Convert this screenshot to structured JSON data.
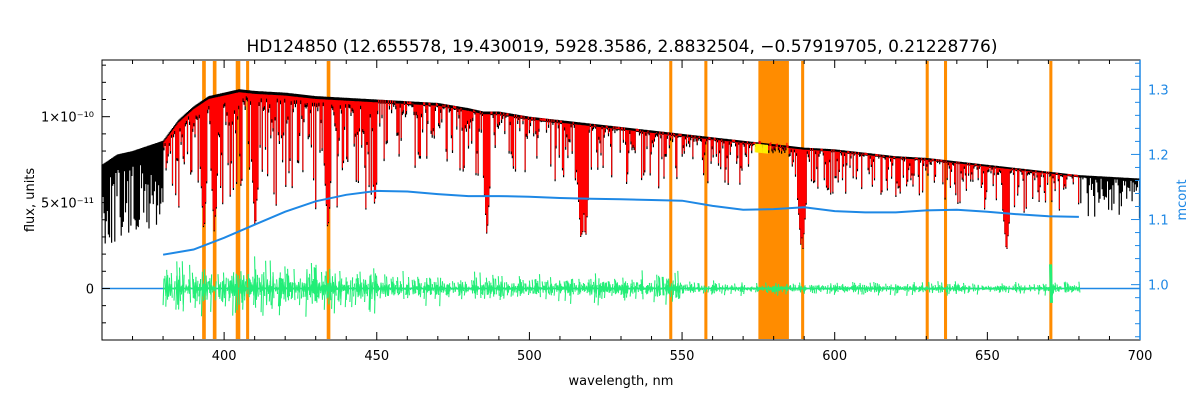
{
  "chart_data": {
    "type": "line",
    "title": "HD124850    (12.655578, 19.430019, 5928.3586, 2.8832504, −0.57919705, 0.21228776)",
    "xlabel": "wavelength, nm",
    "ylabel": "flux, units",
    "y2label": "mcont",
    "xlim": [
      360,
      700
    ],
    "ylim": [
      -3e-11,
      1.33e-10
    ],
    "y2lim": [
      0.915,
      1.345
    ],
    "x_ticks": [
      400,
      450,
      500,
      550,
      600,
      650,
      700
    ],
    "y_ticks": [
      {
        "value": 0,
        "label": "0"
      },
      {
        "value": 5e-11,
        "label": "5×10⁻¹¹"
      },
      {
        "value": 1e-10,
        "label": "1×10⁻¹⁰"
      }
    ],
    "y2_ticks": [
      {
        "value": 1.0,
        "label": "1.0"
      },
      {
        "value": 1.1,
        "label": "1.1"
      },
      {
        "value": 1.2,
        "label": "1.2"
      },
      {
        "value": 1.3,
        "label": "1.3"
      }
    ],
    "colors": {
      "observed": "#000000",
      "model": "#ff0000",
      "residual": "#22ee77",
      "continuum": "#1e88e5",
      "mask": "#ff8c00",
      "highlight": "#ffee00",
      "right_axis": "#1e88e5"
    },
    "series": [
      {
        "key": "observed",
        "x": [
          360,
          365,
          370,
          375,
          380,
          385,
          390,
          395,
          400,
          405,
          410,
          420,
          430,
          440,
          450,
          460,
          470,
          480,
          485,
          490,
          500,
          510,
          520,
          530,
          540,
          550,
          560,
          570,
          575,
          580,
          590,
          600,
          610,
          620,
          630,
          640,
          650,
          655,
          660,
          670,
          680,
          690,
          700
        ],
        "y": [
          7.2e-11,
          7.8e-11,
          8e-11,
          8.3e-11,
          8.6e-11,
          9.8e-11,
          1.06e-10,
          1.12e-10,
          1.14e-10,
          1.16e-10,
          1.15e-10,
          1.14e-10,
          1.12e-10,
          1.11e-10,
          1.1e-10,
          1.09e-10,
          1.08e-10,
          1.05e-10,
          1.03e-10,
          1.03e-10,
          1e-10,
          9.8e-11,
          9.6e-11,
          9.4e-11,
          9.2e-11,
          9e-11,
          8.8e-11,
          8.6e-11,
          8.5e-11,
          8.4e-11,
          8.2e-11,
          8.1e-11,
          7.9e-11,
          7.7e-11,
          7.6e-11,
          7.4e-11,
          7.2e-11,
          7.1e-11,
          7e-11,
          6.8e-11,
          6.6e-11,
          6.5e-11,
          6.4e-11
        ]
      },
      {
        "key": "continuum",
        "axis": "right",
        "x": [
          380,
          390,
          400,
          410,
          420,
          430,
          440,
          450,
          460,
          470,
          480,
          490,
          500,
          510,
          520,
          530,
          540,
          550,
          560,
          570,
          580,
          590,
          600,
          610,
          620,
          630,
          640,
          650,
          660,
          670,
          680
        ],
        "y": [
          1.046,
          1.054,
          1.072,
          1.092,
          1.112,
          1.128,
          1.138,
          1.144,
          1.143,
          1.139,
          1.136,
          1.136,
          1.135,
          1.133,
          1.132,
          1.131,
          1.13,
          1.129,
          1.121,
          1.115,
          1.116,
          1.119,
          1.113,
          1.111,
          1.111,
          1.114,
          1.115,
          1.112,
          1.108,
          1.105,
          1.104
        ]
      },
      {
        "key": "residual",
        "x": [
          380,
          680
        ],
        "y": [
          0,
          0
        ]
      },
      {
        "key": "zero_line",
        "x": [
          360,
          700
        ],
        "y": [
          0,
          0
        ]
      }
    ],
    "mask_bands": [
      {
        "x": [
          392.8,
          394.0
        ]
      },
      {
        "x": [
          396.3,
          397.5
        ]
      },
      {
        "x": [
          403.8,
          405.3
        ]
      },
      {
        "x": [
          407.2,
          408.2
        ]
      },
      {
        "x": [
          433.6,
          434.8
        ]
      },
      {
        "x": [
          545.8,
          546.8
        ]
      },
      {
        "x": [
          557.3,
          558.3
        ]
      },
      {
        "x": [
          575.0,
          585.0
        ]
      },
      {
        "x": [
          589.0,
          590.0
        ]
      },
      {
        "x": [
          629.8,
          630.8
        ]
      },
      {
        "x": [
          635.8,
          636.8
        ]
      },
      {
        "x": [
          670.3,
          671.3
        ]
      }
    ],
    "grid": false,
    "legend": "none"
  }
}
